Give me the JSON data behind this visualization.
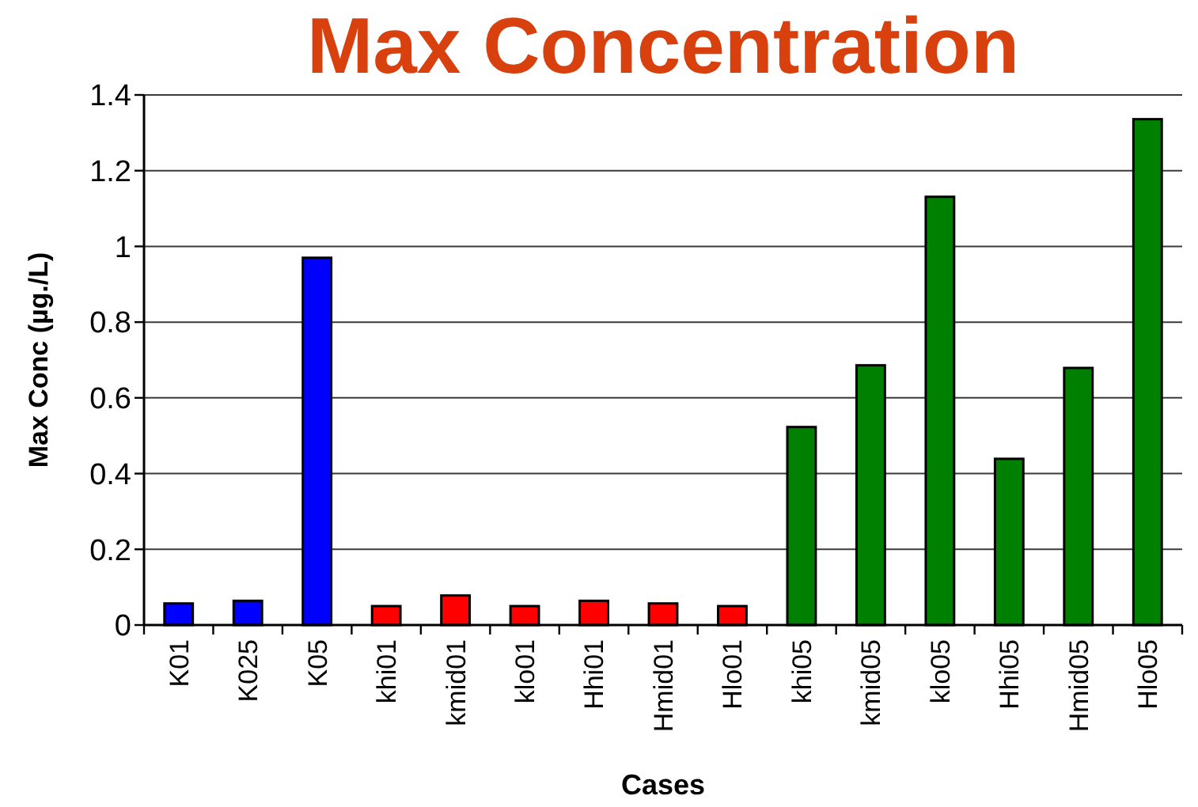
{
  "chart_data": {
    "type": "bar",
    "title": "Max Concentration",
    "xlabel": "Cases",
    "ylabel": "Max Conc (µg./L)",
    "categories": [
      "K01",
      "K025",
      "K05",
      "khi01",
      "kmid01",
      "klo01",
      "Hhi01",
      "Hmid01",
      "Hlo01",
      "khi05",
      "kmid05",
      "klo05",
      "Hhi05",
      "Hmid05",
      "Hlo05"
    ],
    "values": [
      0.057,
      0.064,
      0.97,
      0.05,
      0.078,
      0.05,
      0.064,
      0.057,
      0.05,
      0.523,
      0.686,
      1.131,
      0.439,
      0.679,
      1.336
    ],
    "colors": [
      "#0000ff",
      "#0000ff",
      "#0000ff",
      "#ff0000",
      "#ff0000",
      "#ff0000",
      "#ff0000",
      "#ff0000",
      "#ff0000",
      "#008000",
      "#008000",
      "#008000",
      "#008000",
      "#008000",
      "#008000"
    ],
    "ylim": [
      0,
      1.4
    ],
    "yticks": [
      0,
      0.2,
      0.4,
      0.6,
      0.8,
      1,
      1.2,
      1.4
    ],
    "grid": "y"
  }
}
